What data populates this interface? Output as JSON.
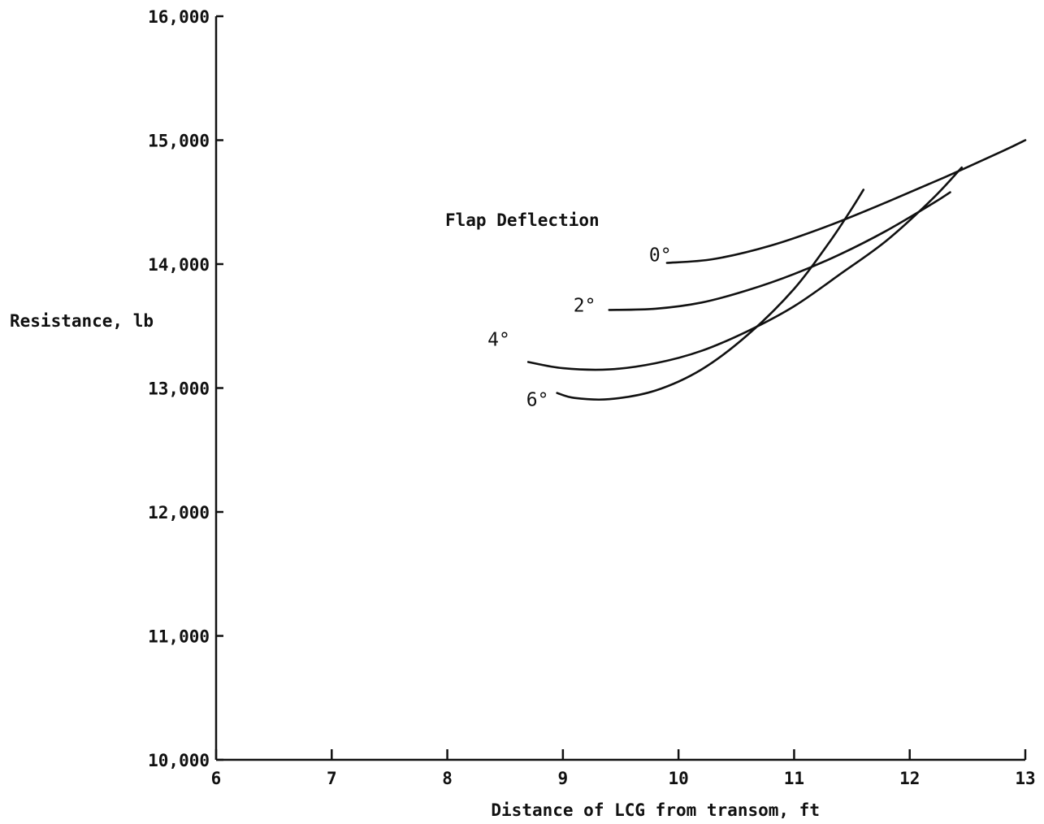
{
  "chart_data": {
    "type": "line",
    "title": "",
    "xlabel": "Distance of LCG from transom, ft",
    "ylabel": "Resistance, lb",
    "xlim": [
      6,
      13
    ],
    "ylim": [
      10000,
      16000
    ],
    "x_ticks": [
      6,
      7,
      8,
      9,
      10,
      11,
      12,
      13
    ],
    "x_tick_labels": [
      "6",
      "7",
      "8",
      "9",
      "10",
      "11",
      "12",
      "13"
    ],
    "y_ticks": [
      10000,
      11000,
      12000,
      13000,
      14000,
      15000,
      16000
    ],
    "y_tick_labels": [
      "10,000",
      "11,000",
      "12,000",
      "13,000",
      "14,000",
      "15,000",
      "16,000"
    ],
    "grid": false,
    "legend_title": "Flap Deflection",
    "series": [
      {
        "name": "0°",
        "x": [
          9.9,
          10.3,
          10.8,
          11.3,
          11.8,
          12.3,
          12.8,
          13.0
        ],
        "y": [
          14010,
          14040,
          14150,
          14310,
          14500,
          14700,
          14910,
          15000
        ]
      },
      {
        "name": "2°",
        "x": [
          9.4,
          9.8,
          10.2,
          10.6,
          11.0,
          11.4,
          11.8,
          12.2,
          12.35
        ],
        "y": [
          13630,
          13640,
          13690,
          13790,
          13920,
          14080,
          14270,
          14490,
          14580
        ]
      },
      {
        "name": "4°",
        "x": [
          8.7,
          9.0,
          9.4,
          9.8,
          10.2,
          10.6,
          11.0,
          11.4,
          11.8,
          12.2,
          12.45
        ],
        "y": [
          13210,
          13160,
          13150,
          13200,
          13300,
          13460,
          13660,
          13920,
          14190,
          14530,
          14780
        ]
      },
      {
        "name": "6°",
        "x": [
          8.95,
          9.1,
          9.4,
          9.8,
          10.2,
          10.6,
          11.0,
          11.3,
          11.5,
          11.6
        ],
        "y": [
          12960,
          12920,
          12910,
          12980,
          13150,
          13430,
          13800,
          14170,
          14450,
          14600
        ]
      }
    ]
  }
}
